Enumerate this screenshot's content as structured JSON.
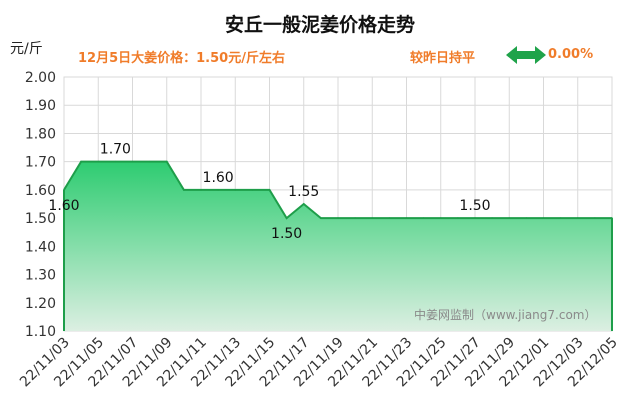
{
  "header": {
    "title": "安丘一般泥姜价格走势",
    "y_unit": "元/斤",
    "price_note": "12月5日大姜价格：1.50元/斤左右",
    "change_label": "较昨日持平",
    "change_value": "0.00%"
  },
  "watermark": "中姜网监制（www.jiang7.com）",
  "colors": {
    "accent": "#f07c2a",
    "line": "#1e9e4a",
    "fill_top": "#2ecc71",
    "fill_bottom": "#dcefe2",
    "arrow": "#1fa34a",
    "grid": "#d9d9d9"
  },
  "chart_data": {
    "type": "area",
    "title": "安丘一般泥姜价格走势",
    "ylabel": "元/斤",
    "xlabel": "",
    "ylim": [
      1.1,
      2.0
    ],
    "yticks": [
      "2.00",
      "1.90",
      "1.80",
      "1.70",
      "1.60",
      "1.50",
      "1.40",
      "1.30",
      "1.20",
      "1.10"
    ],
    "xticks": [
      "22/11/03",
      "22/11/05",
      "22/11/07",
      "22/11/09",
      "22/11/11",
      "22/11/13",
      "22/11/15",
      "22/11/17",
      "22/11/19",
      "22/11/21",
      "22/11/23",
      "22/11/25",
      "22/11/27",
      "22/11/29",
      "22/12/01",
      "22/12/03",
      "22/12/05"
    ],
    "grid": true,
    "dates": [
      "22/11/03",
      "22/11/04",
      "22/11/05",
      "22/11/06",
      "22/11/07",
      "22/11/08",
      "22/11/09",
      "22/11/10",
      "22/11/11",
      "22/11/12",
      "22/11/13",
      "22/11/14",
      "22/11/15",
      "22/11/16",
      "22/11/17",
      "22/11/18",
      "22/11/19",
      "22/11/20",
      "22/11/21",
      "22/11/22",
      "22/11/23",
      "22/11/24",
      "22/11/25",
      "22/11/26",
      "22/11/27",
      "22/11/28",
      "22/11/29",
      "22/11/30",
      "22/12/01",
      "22/12/02",
      "22/12/03",
      "22/12/04",
      "22/12/05"
    ],
    "values": [
      1.6,
      1.7,
      1.7,
      1.7,
      1.7,
      1.7,
      1.7,
      1.6,
      1.6,
      1.6,
      1.6,
      1.6,
      1.6,
      1.5,
      1.55,
      1.5,
      1.5,
      1.5,
      1.5,
      1.5,
      1.5,
      1.5,
      1.5,
      1.5,
      1.5,
      1.5,
      1.5,
      1.5,
      1.5,
      1.5,
      1.5,
      1.5,
      1.5
    ],
    "data_labels": [
      {
        "index": 0,
        "text": "1.60",
        "pos": "below"
      },
      {
        "index": 3,
        "text": "1.70",
        "pos": "above"
      },
      {
        "index": 9,
        "text": "1.60",
        "pos": "above"
      },
      {
        "index": 13,
        "text": "1.50",
        "pos": "below"
      },
      {
        "index": 14,
        "text": "1.55",
        "pos": "above"
      },
      {
        "index": 24,
        "text": "1.50",
        "pos": "above"
      }
    ]
  }
}
